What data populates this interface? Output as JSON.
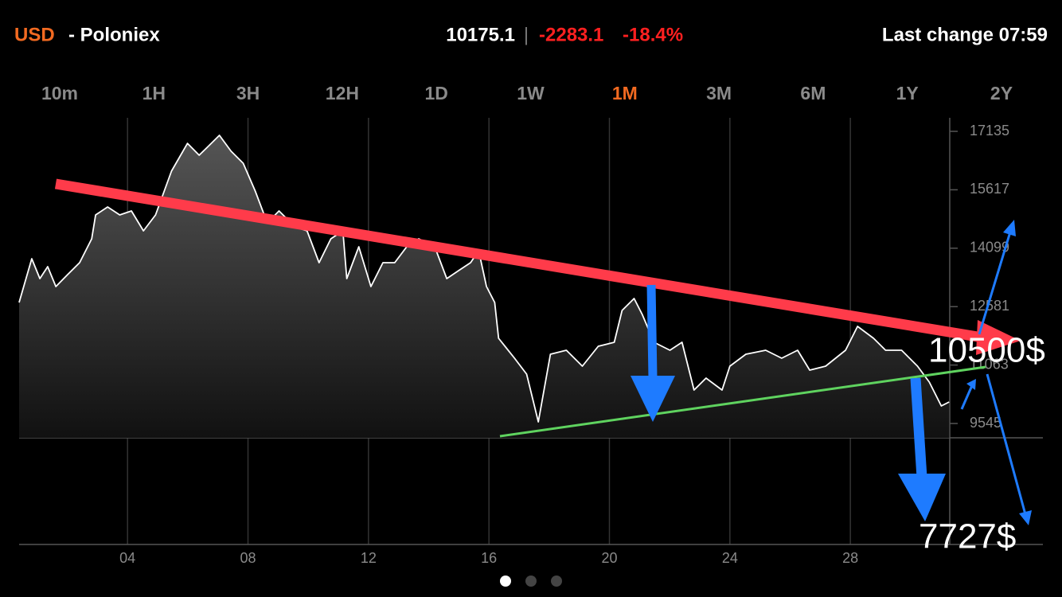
{
  "header": {
    "currency": "USD",
    "exchange": "- Poloniex",
    "price": "10175.1",
    "separator": "|",
    "change": "-2283.1",
    "change_pct": "-18.4%",
    "last_change": "Last change 07:59"
  },
  "tabs": [
    {
      "label": "10m",
      "selected": false
    },
    {
      "label": "1H",
      "selected": false
    },
    {
      "label": "3H",
      "selected": false
    },
    {
      "label": "12H",
      "selected": false
    },
    {
      "label": "1D",
      "selected": false
    },
    {
      "label": "1W",
      "selected": false
    },
    {
      "label": "1M",
      "selected": true
    },
    {
      "label": "3M",
      "selected": false
    },
    {
      "label": "6M",
      "selected": false
    },
    {
      "label": "1Y",
      "selected": false
    },
    {
      "label": "2Y",
      "selected": false
    }
  ],
  "chart_data": {
    "type": "line",
    "x": [
      0.4,
      0.82,
      1.09,
      1.35,
      1.62,
      2.01,
      2.41,
      2.81,
      2.94,
      3.34,
      3.74,
      4.13,
      4.53,
      4.93,
      5.46,
      5.99,
      6.38,
      6.65,
      7.05,
      7.44,
      7.84,
      8.24,
      8.64,
      9.03,
      9.56,
      9.96,
      10.36,
      10.75,
      11.15,
      11.28,
      11.68,
      12.08,
      12.48,
      12.87,
      13.27,
      13.67,
      14.2,
      14.6,
      14.99,
      15.39,
      15.66,
      15.92,
      16.19,
      16.32,
      16.85,
      17.25,
      17.64,
      18.04,
      18.57,
      19.1,
      19.63,
      20.16,
      20.42,
      20.82,
      21.09,
      21.48,
      22.01,
      22.41,
      22.81,
      23.21,
      23.74,
      24.0,
      24.53,
      25.19,
      25.72,
      26.25,
      26.65,
      27.18,
      27.84,
      28.24,
      28.77,
      29.17,
      29.7,
      30.23,
      30.62,
      31.02,
      31.28
    ],
    "series": [
      {
        "color": "#ffffff",
        "values": [
          12688,
          13826,
          13309,
          13619,
          13102,
          13412,
          13722,
          14343,
          14963,
          15170,
          14963,
          15067,
          14550,
          14963,
          16101,
          16824,
          16514,
          16721,
          17031,
          16618,
          16307,
          15584,
          14756,
          15067,
          14653,
          14550,
          13722,
          14343,
          14550,
          13309,
          14136,
          13102,
          13722,
          13722,
          14136,
          14343,
          14136,
          13309,
          13516,
          13722,
          14033,
          13102,
          12688,
          11758,
          11241,
          10827,
          9586,
          11344,
          11448,
          11034,
          11551,
          11654,
          12482,
          12792,
          12378,
          11654,
          11448,
          11654,
          10414,
          10724,
          10414,
          11034,
          11344,
          11448,
          11241,
          11448,
          10931,
          11034,
          11448,
          12068,
          11758,
          11448,
          11448,
          11034,
          10620,
          10000,
          10103
        ]
      }
    ],
    "xlim": [
      0.4,
      31.3
    ],
    "xticks": [
      {
        "value": 4,
        "label": "04"
      },
      {
        "value": 8,
        "label": "08"
      },
      12,
      16,
      20,
      24,
      28
    ],
    "ylim": [
      9173,
      17487
    ],
    "yticks": [
      9545,
      11063,
      12581,
      14099,
      15617,
      17135
    ],
    "grid": true
  },
  "annotations": {
    "upper_target": "10500$",
    "lower_target": "7727$"
  }
}
